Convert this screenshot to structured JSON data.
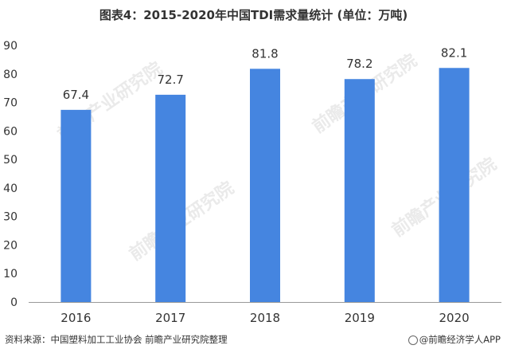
{
  "title": "图表4：2015-2020年中国TDI需求量统计 (单位：万吨)",
  "source": "资料来源：中国塑料加工工业协会 前瞻产业研究院整理",
  "brand": "@前瞻经济学人APP",
  "watermark": "前瞻产业研究院",
  "colors": {
    "bar": "#4585e0",
    "axis": "#999999",
    "text": "#333333"
  },
  "chart_data": {
    "type": "bar",
    "categories": [
      "2016",
      "2017",
      "2018",
      "2019",
      "2020"
    ],
    "values": [
      67.4,
      72.7,
      81.8,
      78.2,
      82.1
    ],
    "value_labels": [
      "67.4",
      "72.7",
      "81.8",
      "78.2",
      "82.1"
    ],
    "ylim": [
      0,
      90
    ],
    "yticks": [
      0,
      10,
      20,
      30,
      40,
      50,
      60,
      70,
      80,
      90
    ],
    "grid": false,
    "legend": "none"
  }
}
